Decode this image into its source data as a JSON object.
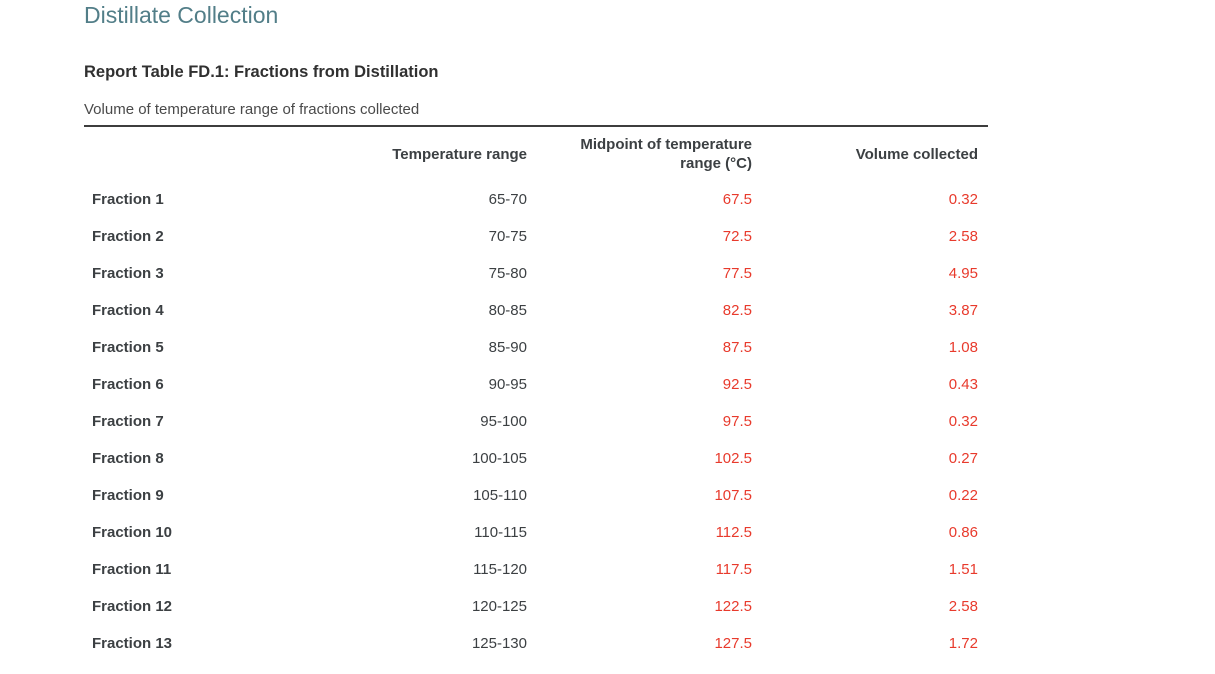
{
  "page": {
    "title": "Distillate Collection",
    "report_title": "Report Table FD.1: Fractions from Distillation",
    "caption": "Volume of temperature range of fractions collected"
  },
  "colors": {
    "title_teal": "#527e88",
    "value_red": "#e83a2c",
    "text_dark": "#3c4043",
    "table_border": "#3d3d3d"
  },
  "chart_data": {
    "type": "table",
    "columns": [
      "",
      "Temperature range",
      "Midpoint of temperature range (°C)",
      "Volume collected"
    ],
    "rows": [
      {
        "label": "Fraction 1",
        "temperature_range": "65-70",
        "midpoint": "67.5",
        "volume": "0.32"
      },
      {
        "label": "Fraction 2",
        "temperature_range": "70-75",
        "midpoint": "72.5",
        "volume": "2.58"
      },
      {
        "label": "Fraction 3",
        "temperature_range": "75-80",
        "midpoint": "77.5",
        "volume": "4.95"
      },
      {
        "label": "Fraction 4",
        "temperature_range": "80-85",
        "midpoint": "82.5",
        "volume": "3.87"
      },
      {
        "label": "Fraction 5",
        "temperature_range": "85-90",
        "midpoint": "87.5",
        "volume": "1.08"
      },
      {
        "label": "Fraction 6",
        "temperature_range": "90-95",
        "midpoint": "92.5",
        "volume": "0.43"
      },
      {
        "label": "Fraction 7",
        "temperature_range": "95-100",
        "midpoint": "97.5",
        "volume": "0.32"
      },
      {
        "label": "Fraction 8",
        "temperature_range": "100-105",
        "midpoint": "102.5",
        "volume": "0.27"
      },
      {
        "label": "Fraction 9",
        "temperature_range": "105-110",
        "midpoint": "107.5",
        "volume": "0.22"
      },
      {
        "label": "Fraction 10",
        "temperature_range": "110-115",
        "midpoint": "112.5",
        "volume": "0.86"
      },
      {
        "label": "Fraction 11",
        "temperature_range": "115-120",
        "midpoint": "117.5",
        "volume": "1.51"
      },
      {
        "label": "Fraction 12",
        "temperature_range": "120-125",
        "midpoint": "122.5",
        "volume": "2.58"
      },
      {
        "label": "Fraction 13",
        "temperature_range": "125-130",
        "midpoint": "127.5",
        "volume": "1.72"
      }
    ]
  }
}
